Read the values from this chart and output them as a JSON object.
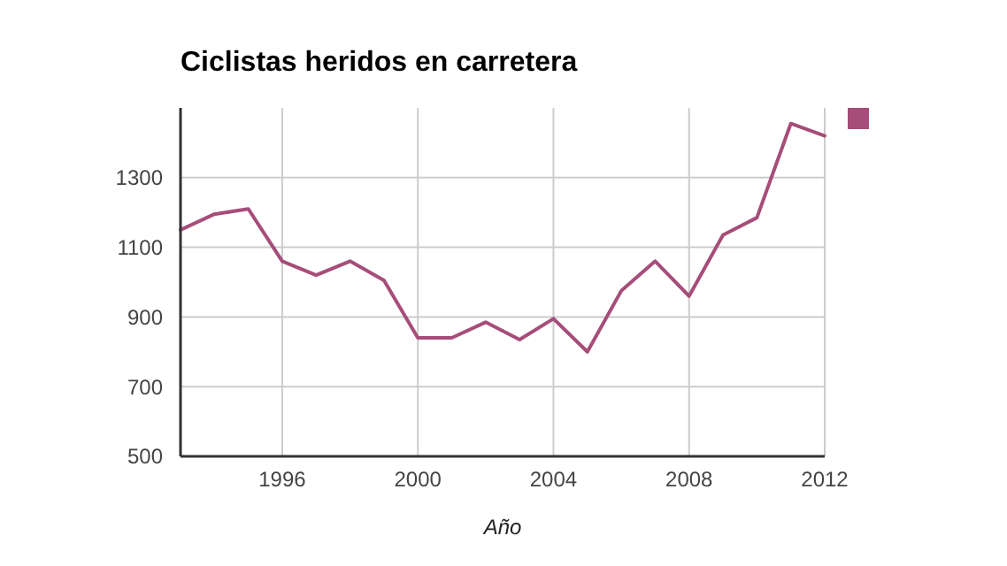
{
  "chart_data": {
    "type": "line",
    "title": "Ciclistas heridos en carretera",
    "xlabel": "Año",
    "x": [
      1993,
      1994,
      1995,
      1996,
      1997,
      1998,
      1999,
      2000,
      2001,
      2002,
      2003,
      2004,
      2005,
      2006,
      2007,
      2008,
      2009,
      2010,
      2011,
      2012
    ],
    "series": [
      {
        "color": "#a64d79",
        "values": [
          1150,
          1195,
          1210,
          1060,
          1020,
          1060,
          1005,
          840,
          840,
          885,
          835,
          895,
          800,
          975,
          1060,
          960,
          1135,
          1185,
          1455,
          1420
        ]
      }
    ],
    "xlim": [
      1993,
      2012
    ],
    "xticks": [
      1996,
      2000,
      2004,
      2008,
      2012
    ],
    "ylim": [
      500,
      1500
    ],
    "yticks": [
      500,
      700,
      900,
      1100,
      1300
    ],
    "grid": true
  }
}
